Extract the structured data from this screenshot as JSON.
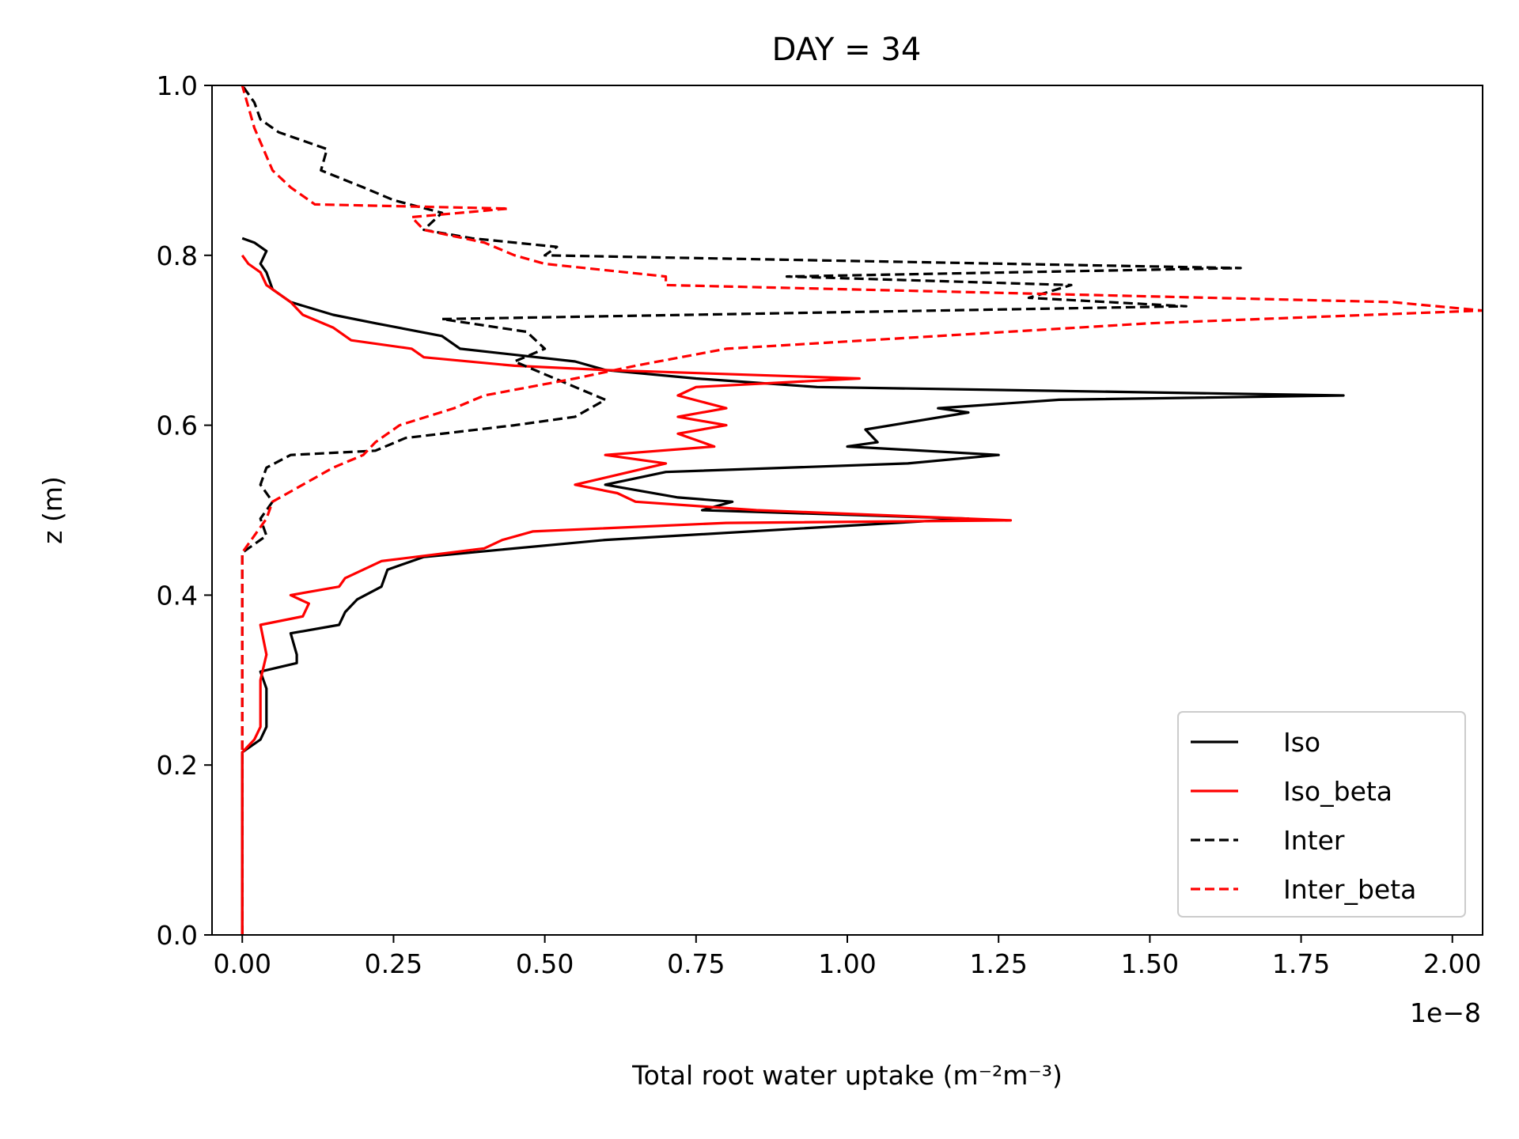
{
  "chart_data": {
    "type": "line",
    "title": "DAY = 34",
    "xlabel": "Total root water uptake (m⁻²m⁻³)",
    "ylabel": "z (m)",
    "x_offset_text": "1e−8",
    "x_scale_multiplier": 1e-08,
    "xlim": [
      -0.05,
      2.05
    ],
    "ylim": [
      0.0,
      1.0
    ],
    "x_ticks": [
      0.0,
      0.25,
      0.5,
      0.75,
      1.0,
      1.25,
      1.5,
      1.75,
      2.0
    ],
    "x_tick_labels": [
      "0.00",
      "0.25",
      "0.50",
      "0.75",
      "1.00",
      "1.25",
      "1.50",
      "1.75",
      "2.00"
    ],
    "y_ticks": [
      0.0,
      0.2,
      0.4,
      0.6,
      0.8,
      1.0
    ],
    "y_tick_labels": [
      "0.0",
      "0.2",
      "0.4",
      "0.6",
      "0.8",
      "1.0"
    ],
    "grid": false,
    "legend_position": "lower-right",
    "series": [
      {
        "name": "Iso",
        "color": "#000000",
        "dash": "solid",
        "points": [
          [
            0,
            0
          ],
          [
            0,
            0.215
          ],
          [
            0.03,
            0.23
          ],
          [
            0.04,
            0.245
          ],
          [
            0.04,
            0.29
          ],
          [
            0.03,
            0.31
          ],
          [
            0.09,
            0.32
          ],
          [
            0.09,
            0.33
          ],
          [
            0.08,
            0.355
          ],
          [
            0.16,
            0.365
          ],
          [
            0.17,
            0.38
          ],
          [
            0.19,
            0.395
          ],
          [
            0.23,
            0.41
          ],
          [
            0.24,
            0.43
          ],
          [
            0.3,
            0.445
          ],
          [
            0.6,
            0.465
          ],
          [
            1.2,
            0.49
          ],
          [
            0.76,
            0.5
          ],
          [
            0.81,
            0.51
          ],
          [
            0.72,
            0.515
          ],
          [
            0.6,
            0.53
          ],
          [
            0.7,
            0.545
          ],
          [
            1.1,
            0.555
          ],
          [
            1.25,
            0.565
          ],
          [
            1.0,
            0.575
          ],
          [
            1.05,
            0.58
          ],
          [
            1.03,
            0.595
          ],
          [
            1.2,
            0.615
          ],
          [
            1.15,
            0.62
          ],
          [
            1.35,
            0.63
          ],
          [
            1.82,
            0.635
          ],
          [
            0.95,
            0.645
          ],
          [
            0.75,
            0.655
          ],
          [
            0.6,
            0.665
          ],
          [
            0.55,
            0.675
          ],
          [
            0.36,
            0.69
          ],
          [
            0.33,
            0.705
          ],
          [
            0.22,
            0.72
          ],
          [
            0.15,
            0.73
          ],
          [
            0.08,
            0.745
          ],
          [
            0.05,
            0.76
          ],
          [
            0.04,
            0.78
          ],
          [
            0.03,
            0.79
          ],
          [
            0.04,
            0.805
          ],
          [
            0.02,
            0.815
          ],
          [
            0,
            0.82
          ]
        ]
      },
      {
        "name": "Iso_beta",
        "color": "#ff0000",
        "dash": "solid",
        "points": [
          [
            0,
            0
          ],
          [
            0,
            0.215
          ],
          [
            0.02,
            0.23
          ],
          [
            0.03,
            0.245
          ],
          [
            0.03,
            0.3
          ],
          [
            0.04,
            0.33
          ],
          [
            0.03,
            0.365
          ],
          [
            0.1,
            0.375
          ],
          [
            0.11,
            0.39
          ],
          [
            0.08,
            0.4
          ],
          [
            0.16,
            0.41
          ],
          [
            0.17,
            0.42
          ],
          [
            0.2,
            0.43
          ],
          [
            0.23,
            0.44
          ],
          [
            0.4,
            0.455
          ],
          [
            0.43,
            0.465
          ],
          [
            0.48,
            0.475
          ],
          [
            0.8,
            0.485
          ],
          [
            1.27,
            0.488
          ],
          [
            0.85,
            0.5
          ],
          [
            0.65,
            0.51
          ],
          [
            0.62,
            0.52
          ],
          [
            0.55,
            0.53
          ],
          [
            0.64,
            0.545
          ],
          [
            0.7,
            0.555
          ],
          [
            0.6,
            0.565
          ],
          [
            0.78,
            0.575
          ],
          [
            0.72,
            0.59
          ],
          [
            0.8,
            0.6
          ],
          [
            0.72,
            0.61
          ],
          [
            0.8,
            0.62
          ],
          [
            0.72,
            0.635
          ],
          [
            0.75,
            0.645
          ],
          [
            1.02,
            0.655
          ],
          [
            0.6,
            0.665
          ],
          [
            0.45,
            0.67
          ],
          [
            0.3,
            0.68
          ],
          [
            0.28,
            0.69
          ],
          [
            0.18,
            0.7
          ],
          [
            0.15,
            0.715
          ],
          [
            0.1,
            0.73
          ],
          [
            0.08,
            0.745
          ],
          [
            0.04,
            0.765
          ],
          [
            0.03,
            0.78
          ],
          [
            0.01,
            0.79
          ],
          [
            0,
            0.8
          ]
        ]
      },
      {
        "name": "Inter",
        "color": "#000000",
        "dash": "dashed",
        "points": [
          [
            0,
            0
          ],
          [
            0,
            0.45
          ],
          [
            0.04,
            0.47
          ],
          [
            0.03,
            0.49
          ],
          [
            0.05,
            0.51
          ],
          [
            0.03,
            0.53
          ],
          [
            0.04,
            0.55
          ],
          [
            0.08,
            0.565
          ],
          [
            0.22,
            0.57
          ],
          [
            0.27,
            0.585
          ],
          [
            0.45,
            0.6
          ],
          [
            0.55,
            0.61
          ],
          [
            0.6,
            0.63
          ],
          [
            0.55,
            0.645
          ],
          [
            0.5,
            0.66
          ],
          [
            0.45,
            0.675
          ],
          [
            0.5,
            0.69
          ],
          [
            0.47,
            0.71
          ],
          [
            0.33,
            0.725
          ],
          [
            1.56,
            0.74
          ],
          [
            1.3,
            0.75
          ],
          [
            1.37,
            0.765
          ],
          [
            0.9,
            0.775
          ],
          [
            1.65,
            0.785
          ],
          [
            0.5,
            0.8
          ],
          [
            0.52,
            0.81
          ],
          [
            0.38,
            0.82
          ],
          [
            0.3,
            0.83
          ],
          [
            0.33,
            0.85
          ],
          [
            0.25,
            0.865
          ],
          [
            0.2,
            0.88
          ],
          [
            0.13,
            0.9
          ],
          [
            0.14,
            0.925
          ],
          [
            0.06,
            0.945
          ],
          [
            0.03,
            0.96
          ],
          [
            0.02,
            0.98
          ],
          [
            0,
            1.0
          ]
        ]
      },
      {
        "name": "Inter_beta",
        "color": "#ff0000",
        "dash": "dashed",
        "points": [
          [
            0,
            0
          ],
          [
            0,
            0.45
          ],
          [
            0.02,
            0.47
          ],
          [
            0.04,
            0.49
          ],
          [
            0.05,
            0.51
          ],
          [
            0.1,
            0.53
          ],
          [
            0.15,
            0.55
          ],
          [
            0.2,
            0.565
          ],
          [
            0.22,
            0.58
          ],
          [
            0.26,
            0.6
          ],
          [
            0.35,
            0.62
          ],
          [
            0.4,
            0.635
          ],
          [
            0.55,
            0.655
          ],
          [
            0.65,
            0.67
          ],
          [
            0.8,
            0.69
          ],
          [
            1.5,
            0.72
          ],
          [
            2.05,
            0.735
          ],
          [
            1.9,
            0.745
          ],
          [
            1.3,
            0.755
          ],
          [
            0.7,
            0.765
          ],
          [
            0.7,
            0.775
          ],
          [
            0.5,
            0.79
          ],
          [
            0.45,
            0.8
          ],
          [
            0.4,
            0.815
          ],
          [
            0.3,
            0.83
          ],
          [
            0.28,
            0.845
          ],
          [
            0.44,
            0.855
          ],
          [
            0.12,
            0.86
          ],
          [
            0.08,
            0.88
          ],
          [
            0.05,
            0.9
          ],
          [
            0.02,
            0.95
          ],
          [
            0,
            1.0
          ]
        ]
      }
    ]
  }
}
